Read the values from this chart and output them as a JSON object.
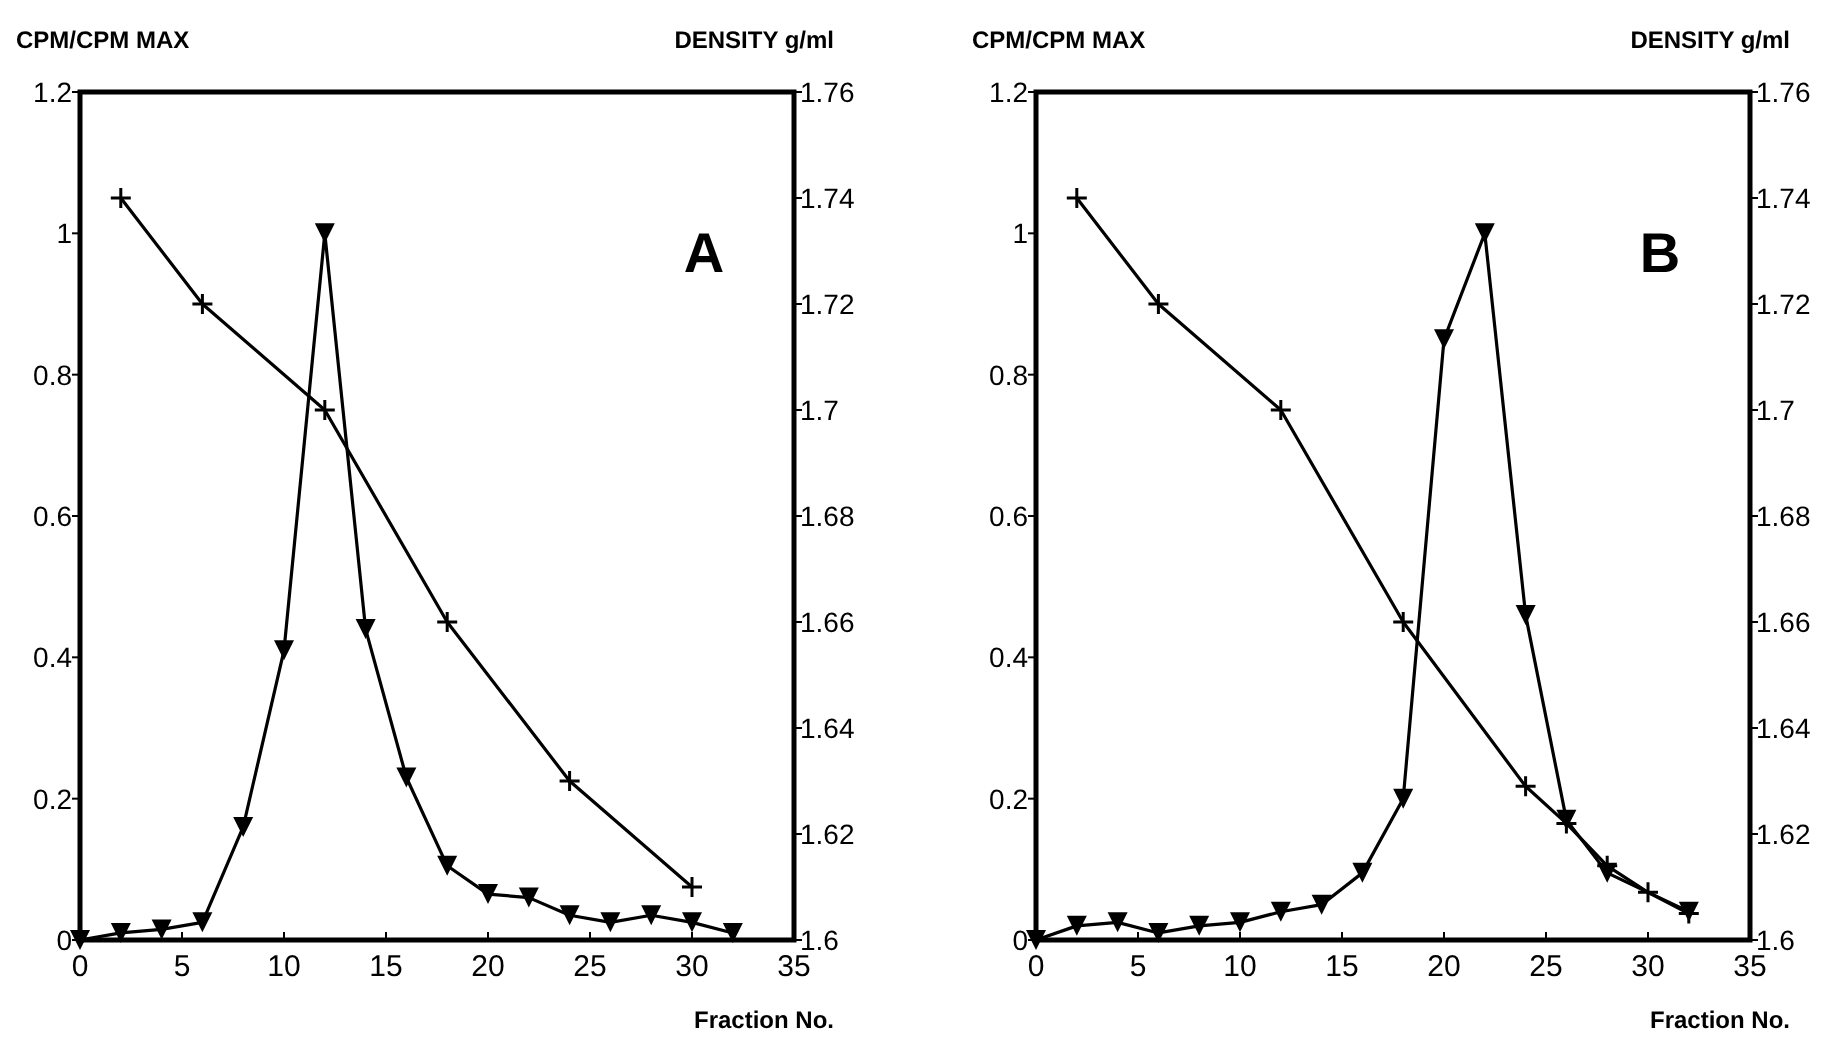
{
  "chart_data": [
    {
      "type": "line",
      "xlabel": "Fraction No.",
      "ylabel": "CPM/CPM MAX",
      "y2label": "DENSITY g/ml",
      "annotations": [
        "A"
      ],
      "xlim": [
        0,
        35
      ],
      "xticks": [
        0,
        5,
        10,
        15,
        20,
        25,
        30,
        35
      ],
      "ylim": [
        0,
        1.2
      ],
      "yticks": [
        0,
        0.2,
        0.4,
        0.6,
        0.8,
        1,
        1.2
      ],
      "y2lim": [
        1.6,
        1.76
      ],
      "y2ticks": [
        1.6,
        1.62,
        1.64,
        1.66,
        1.68,
        1.7,
        1.72,
        1.74,
        1.76
      ],
      "series": [
        {
          "color": "#000000",
          "marker": "triangle",
          "x": [
            0,
            2,
            4,
            6,
            8,
            10,
            12,
            14,
            16,
            18,
            20,
            22,
            24,
            26,
            28,
            30,
            32
          ],
          "values": [
            0,
            0.01,
            0.015,
            0.025,
            0.16,
            0.41,
            1.0,
            0.44,
            0.23,
            0.105,
            0.065,
            0.06,
            0.035,
            0.025,
            0.035,
            0.025,
            0.01
          ]
        },
        {
          "color": "#000000",
          "marker": "cross",
          "axis": "y2",
          "x": [
            2,
            6,
            12,
            18,
            24,
            30
          ],
          "values": [
            1.74,
            1.72,
            1.7,
            1.66,
            1.63,
            1.61
          ]
        }
      ]
    },
    {
      "type": "line",
      "xlabel": "Fraction No.",
      "ylabel": "CPM/CPM MAX",
      "y2label": "DENSITY g/ml",
      "annotations": [
        "B"
      ],
      "xlim": [
        0,
        35
      ],
      "xticks": [
        0,
        5,
        10,
        15,
        20,
        25,
        30,
        35
      ],
      "ylim": [
        0,
        1.2
      ],
      "yticks": [
        0,
        0.2,
        0.4,
        0.6,
        0.8,
        1,
        1.2
      ],
      "y2lim": [
        1.6,
        1.76
      ],
      "y2ticks": [
        1.6,
        1.62,
        1.64,
        1.66,
        1.68,
        1.7,
        1.72,
        1.74,
        1.76
      ],
      "series": [
        {
          "color": "#000000",
          "marker": "triangle",
          "x": [
            0,
            2,
            4,
            6,
            8,
            10,
            12,
            14,
            16,
            18,
            20,
            22,
            24,
            26,
            28,
            32
          ],
          "values": [
            0,
            0.02,
            0.025,
            0.01,
            0.02,
            0.025,
            0.04,
            0.05,
            0.095,
            0.2,
            0.85,
            1.0,
            0.46,
            0.17,
            0.095,
            0.04
          ]
        },
        {
          "color": "#000000",
          "marker": "cross",
          "axis": "y2",
          "x": [
            2,
            6,
            12,
            18,
            24,
            26,
            28,
            30,
            32
          ],
          "values": [
            1.74,
            1.72,
            1.7,
            1.66,
            1.629,
            1.622,
            1.614,
            1.609,
            1.605
          ]
        }
      ]
    }
  ]
}
